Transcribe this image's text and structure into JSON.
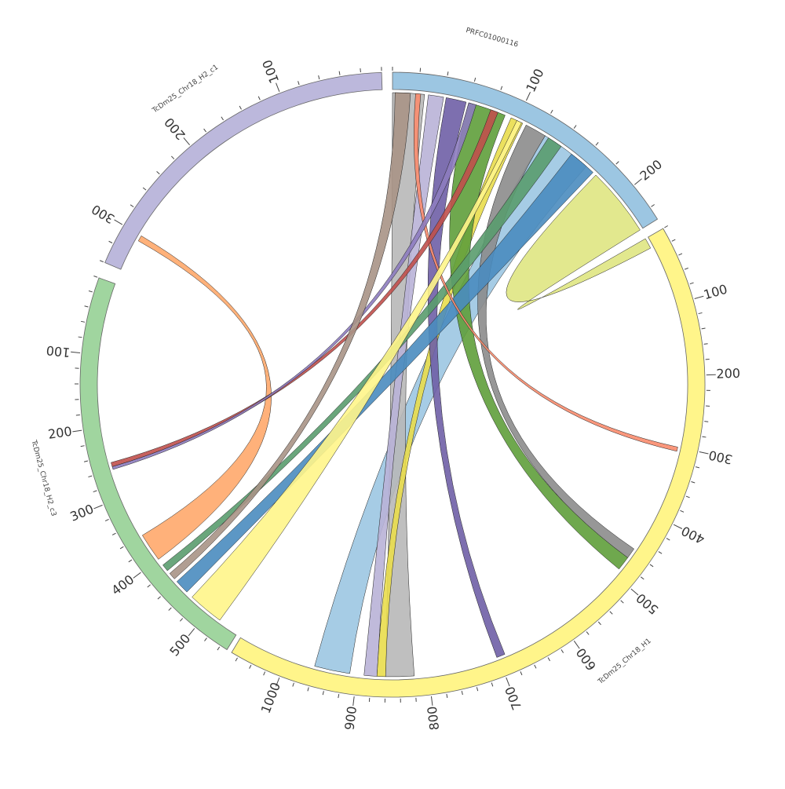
{
  "circos": {
    "segments": [
      {
        "id": "h2c1",
        "name": "TcDm25_Chr18_H2_c1",
        "color": "#bcb8dc",
        "length": 340,
        "start_deg": 293,
        "end_deg": 358,
        "ticks": [
          100,
          200,
          300
        ],
        "reversed": true
      },
      {
        "id": "prfc",
        "name": "PRFC01000116",
        "color": "#9cc6e2",
        "length": 230,
        "start_deg": 0,
        "end_deg": 58,
        "ticks": [
          100,
          200
        ],
        "reversed": false
      },
      {
        "id": "h1",
        "name": "TcDm25_Chr18_H1",
        "color": "#fff58a",
        "length": 1070,
        "start_deg": 60,
        "end_deg": 211,
        "ticks": [
          100,
          200,
          300,
          400,
          500,
          600,
          700,
          800,
          900,
          1000
        ],
        "reversed": false
      },
      {
        "id": "h2c3",
        "name": "TcDm25_Chr18_H2_c3",
        "color": "#a0d59f",
        "length": 550,
        "start_deg": 212,
        "end_deg": 290,
        "ticks": [
          100,
          200,
          300,
          400,
          500
        ],
        "reversed": true
      }
    ],
    "links": [
      {
        "a": "prfc",
        "a_start": 175,
        "a_end": 230,
        "b": "h1",
        "b_start": 0,
        "b_end": 15,
        "color": "#dfe582"
      },
      {
        "a": "prfc",
        "a_start": 125,
        "a_end": 165,
        "b": "h1",
        "b_start": 910,
        "b_end": 960,
        "color": "#9cc6e2"
      },
      {
        "a": "prfc",
        "a_start": 0,
        "a_end": 25,
        "b": "h1",
        "b_start": 820,
        "b_end": 860,
        "color": "#b8b8b8"
      },
      {
        "a": "prfc",
        "a_start": 28,
        "a_end": 40,
        "b": "h1",
        "b_start": 872,
        "b_end": 890,
        "color": "#b9b2d7"
      },
      {
        "a": "prfc",
        "a_start": 95,
        "a_end": 105,
        "b": "h1",
        "b_start": 860,
        "b_end": 872,
        "color": "#e9dd4d"
      },
      {
        "a": "prfc",
        "a_start": 42,
        "a_end": 58,
        "b": "h1",
        "b_start": 690,
        "b_end": 702,
        "color": "#6f5fa6"
      },
      {
        "a": "prfc",
        "a_start": 60,
        "a_end": 90,
        "b": "h1",
        "b_start": 470,
        "b_end": 490,
        "color": "#5f9e3b"
      },
      {
        "a": "prfc",
        "a_start": 108,
        "a_end": 125,
        "b": "h1",
        "b_start": 455,
        "b_end": 470,
        "color": "#8c8c8c"
      },
      {
        "a": "prfc",
        "a_start": 150,
        "a_end": 172,
        "b": "h2c3",
        "b_start": 440,
        "b_end": 460,
        "color": "#4a8cbf"
      },
      {
        "a": "prfc",
        "a_start": 128,
        "a_end": 140,
        "b": "h2c3",
        "b_start": 410,
        "b_end": 420,
        "color": "#5a9c6e"
      },
      {
        "a": "prfc",
        "a_start": 18,
        "a_end": 22,
        "b": "h1",
        "b_start": 300,
        "b_end": 306,
        "color": "#fa8c6e"
      },
      {
        "a": "h2c1",
        "a_start": 300,
        "a_end": 306,
        "b": "h2c3",
        "b_start": 360,
        "b_end": 400,
        "color": "#ffa86b"
      },
      {
        "a": "prfc",
        "a_start": 100,
        "a_end": 104,
        "b": "h2c3",
        "b_start": 470,
        "b_end": 520,
        "color": "#fff58a"
      },
      {
        "a": "prfc",
        "a_start": 78,
        "a_end": 84,
        "b": "h2c3",
        "b_start": 250,
        "b_end": 256,
        "color": "#c0504d"
      },
      {
        "a": "prfc",
        "a_start": 60,
        "a_end": 66,
        "b": "h2c3",
        "b_start": 256,
        "b_end": 260,
        "color": "#8d7cbf"
      },
      {
        "a": "prfc",
        "a_start": 2,
        "a_end": 14,
        "b": "h2c3",
        "b_start": 425,
        "b_end": 435,
        "color": "#a99486"
      }
    ]
  }
}
